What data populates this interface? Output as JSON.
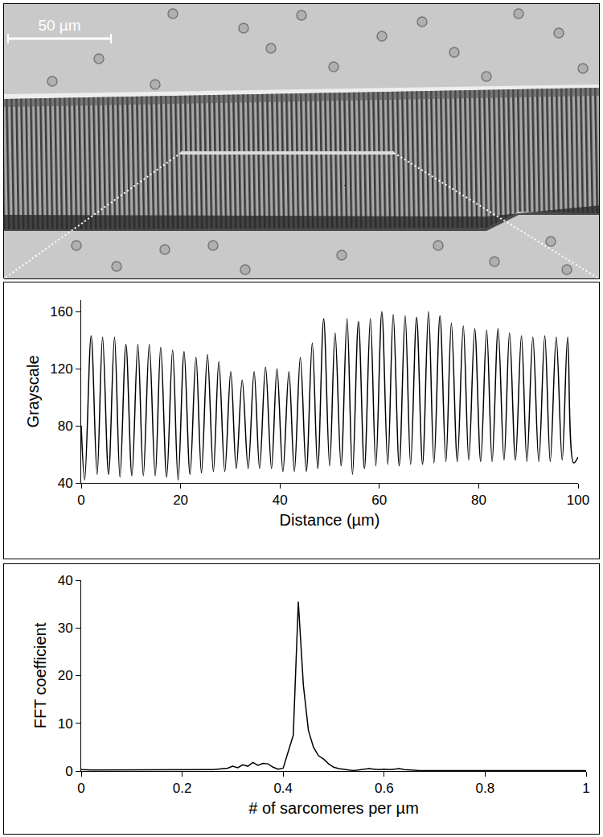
{
  "image": {
    "scale_bar": "50 µm"
  },
  "chart_data": [
    {
      "type": "line",
      "x_label": "Distance (µm)",
      "y_label": "Grayscale",
      "x": [
        0,
        0.7,
        2.0,
        3.2,
        4.3,
        5.5,
        6.7,
        7.8,
        9.0,
        10.2,
        11.4,
        12.5,
        13.7,
        14.9,
        16.0,
        17.2,
        18.4,
        19.5,
        20.7,
        21.9,
        23.1,
        24.2,
        25.4,
        26.6,
        27.7,
        28.9,
        30.1,
        31.2,
        32.4,
        33.6,
        34.8,
        35.9,
        37.1,
        38.3,
        39.4,
        40.6,
        41.8,
        42.9,
        44.1,
        45.3,
        46.5,
        47.6,
        48.8,
        50.0,
        51.1,
        52.3,
        53.5,
        54.6,
        55.8,
        57.0,
        58.2,
        59.3,
        60.5,
        61.7,
        62.8,
        64.0,
        65.2,
        66.3,
        67.5,
        68.7,
        69.9,
        71.0,
        72.2,
        73.4,
        74.5,
        75.7,
        76.9,
        78.0,
        79.2,
        80.4,
        81.6,
        82.7,
        83.9,
        85.1,
        86.2,
        87.4,
        88.6,
        89.7,
        90.9,
        92.1,
        93.3,
        94.4,
        95.6,
        96.8,
        97.9,
        99.1,
        100
      ],
      "values": [
        80,
        42,
        143,
        46,
        142,
        46,
        142,
        44,
        137,
        45,
        137,
        45,
        137,
        45,
        135,
        44,
        133,
        42,
        132,
        46,
        128,
        47,
        130,
        48,
        125,
        48,
        118,
        50,
        112,
        50,
        118,
        50,
        121,
        50,
        120,
        48,
        118,
        48,
        128,
        48,
        138,
        50,
        155,
        52,
        145,
        52,
        155,
        46,
        153,
        50,
        155,
        52,
        160,
        53,
        158,
        52,
        157,
        53,
        156,
        53,
        160,
        54,
        157,
        55,
        152,
        55,
        150,
        56,
        148,
        55,
        147,
        55,
        148,
        56,
        145,
        56,
        143,
        55,
        142,
        55,
        143,
        55,
        142,
        56,
        142,
        54,
        58
      ],
      "color": "#000000",
      "line_style": "smooth",
      "grid": false,
      "xlim": [
        0,
        100
      ],
      "xticks": [
        0,
        20,
        40,
        60,
        80,
        100
      ],
      "ylim": [
        40,
        168
      ],
      "yticks": [
        40,
        80,
        120,
        160
      ]
    },
    {
      "type": "line",
      "x_label": "# of sarcomeres per µm",
      "y_label": "FFT coefficient",
      "x": [
        0,
        0.01,
        0.02,
        0.03,
        0.04,
        0.05,
        0.06,
        0.07,
        0.08,
        0.09,
        0.1,
        0.11,
        0.12,
        0.13,
        0.14,
        0.15,
        0.16,
        0.17,
        0.18,
        0.19,
        0.2,
        0.21,
        0.22,
        0.23,
        0.24,
        0.25,
        0.26,
        0.27,
        0.28,
        0.29,
        0.3,
        0.31,
        0.32,
        0.33,
        0.34,
        0.35,
        0.36,
        0.37,
        0.38,
        0.39,
        0.4,
        0.41,
        0.42,
        0.43,
        0.44,
        0.45,
        0.46,
        0.47,
        0.48,
        0.49,
        0.5,
        0.51,
        0.52,
        0.53,
        0.54,
        0.55,
        0.56,
        0.57,
        0.58,
        0.59,
        0.6,
        0.61,
        0.62,
        0.63,
        0.64,
        0.65,
        0.66,
        0.67,
        0.68,
        0.69,
        0.7,
        0.71,
        0.72,
        0.73,
        0.74,
        0.75,
        0.76,
        0.77,
        0.78,
        0.79,
        0.8,
        0.81,
        0.82,
        0.83,
        0.84,
        0.85,
        0.86,
        0.87,
        0.88,
        0.89,
        0.9,
        0.91,
        0.92,
        0.93,
        0.94,
        0.95,
        0.96,
        0.97,
        0.98,
        0.99,
        1
      ],
      "values": [
        0.3,
        0.2,
        0.2,
        0.2,
        0.2,
        0.2,
        0.2,
        0.2,
        0.2,
        0.2,
        0.2,
        0.2,
        0.2,
        0.2,
        0.2,
        0.2,
        0.2,
        0.2,
        0.2,
        0.2,
        0.2,
        0.2,
        0.2,
        0.2,
        0.2,
        0.2,
        0.3,
        0.4,
        0.5,
        0.6,
        1.0,
        0.7,
        1.3,
        1.0,
        1.8,
        1.2,
        1.6,
        1.5,
        0.8,
        0.4,
        0.6,
        4.0,
        7.5,
        35.5,
        18.0,
        8.5,
        5.0,
        3.2,
        2.5,
        1.5,
        0.8,
        0.5,
        0.3,
        0.2,
        0.1,
        0.2,
        0.3,
        0.5,
        0.4,
        0.3,
        0.4,
        0.3,
        0.4,
        0.5,
        0.3,
        0.2,
        0.1,
        0.1,
        0.1,
        0.1,
        0.1,
        0.1,
        0.1,
        0.1,
        0.1,
        0.1,
        0.1,
        0.1,
        0.1,
        0.1,
        0.1,
        0.1,
        0.1,
        0.1,
        0.1,
        0.1,
        0.1,
        0.1,
        0.1,
        0.1,
        0.1,
        0.1,
        0.1,
        0.1,
        0.1,
        0.1,
        0.1,
        0.1,
        0.1,
        0.1,
        0.1
      ],
      "color": "#000000",
      "line_style": "solid",
      "grid": false,
      "xlim": [
        0,
        1
      ],
      "xticks": [
        0,
        0.2,
        0.4,
        0.6,
        0.8,
        1
      ],
      "ylim": [
        0,
        40
      ],
      "yticks": [
        0,
        10,
        20,
        30,
        40
      ]
    }
  ]
}
